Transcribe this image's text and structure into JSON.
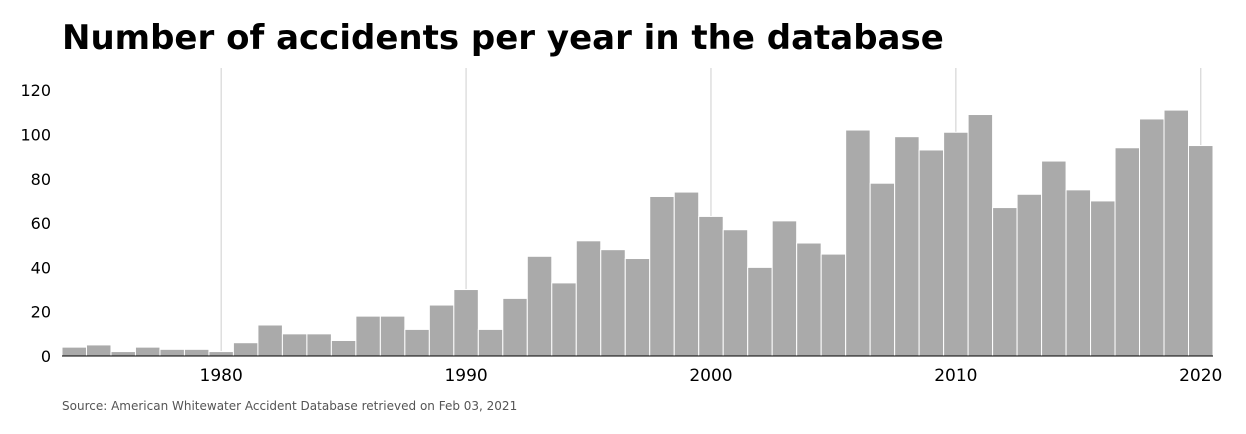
{
  "chart_data": {
    "type": "bar",
    "title": "Number of accidents per year in the database",
    "source": "Source: American Whitewater Accident Database retrieved on Feb 03, 2021",
    "xlabel": "",
    "ylabel": "",
    "x": [
      1974,
      1975,
      1976,
      1977,
      1978,
      1979,
      1980,
      1981,
      1982,
      1983,
      1984,
      1985,
      1986,
      1987,
      1988,
      1989,
      1990,
      1991,
      1992,
      1993,
      1994,
      1995,
      1996,
      1997,
      1998,
      1999,
      2000,
      2001,
      2002,
      2003,
      2004,
      2005,
      2006,
      2007,
      2008,
      2009,
      2010,
      2011,
      2012,
      2013,
      2014,
      2015,
      2016,
      2017,
      2018,
      2019,
      2020
    ],
    "values": [
      4,
      5,
      2,
      4,
      3,
      3,
      2,
      6,
      14,
      10,
      10,
      7,
      18,
      18,
      12,
      23,
      30,
      12,
      26,
      45,
      33,
      52,
      48,
      44,
      72,
      74,
      63,
      57,
      40,
      61,
      51,
      46,
      102,
      78,
      99,
      93,
      101,
      109,
      67,
      73,
      88,
      75,
      70,
      94,
      107,
      111,
      95
    ],
    "xticks": [
      "1980",
      "1990",
      "2000",
      "2010",
      "2020"
    ],
    "yticks": [
      "0",
      "20",
      "40",
      "60",
      "80",
      "100",
      "120"
    ],
    "ylim": [
      0,
      130
    ],
    "xlim": [
      1973.5,
      2020.5
    ],
    "bar_color": "#aaaaaa",
    "grid": "vertical gridlines at decade ticks"
  }
}
